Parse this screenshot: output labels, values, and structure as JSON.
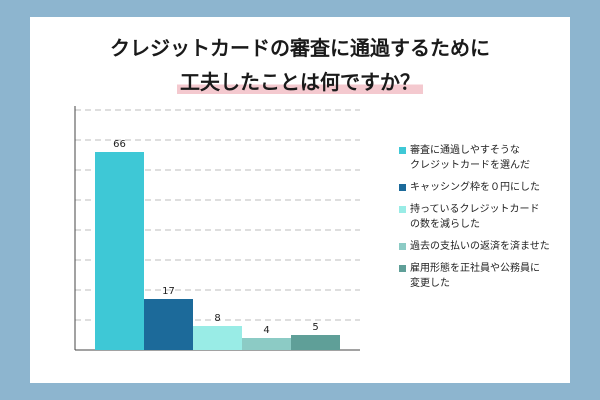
{
  "title": {
    "line1": "クレジットカードの審査に通過するために",
    "line2": "工夫したことは何ですか？"
  },
  "chart_data": {
    "type": "bar",
    "categories": [
      "審査に通過しやすそうな\nクレジットカードを選んだ",
      "キャッシング枠を０円にした",
      "持っているクレジットカード\nの数を減らした",
      "過去の支払いの返済を済ませた",
      "雇用形態を正社員や公務員に\n変更した"
    ],
    "values": [
      66,
      17,
      8,
      4,
      5
    ],
    "colors": [
      "#3ec8d6",
      "#1c6a9a",
      "#99ece6",
      "#8ccbc5",
      "#5f9f98"
    ],
    "ylim": [
      0,
      80
    ],
    "grid": true,
    "legend_position": "right",
    "xlabel": "",
    "ylabel": ""
  }
}
